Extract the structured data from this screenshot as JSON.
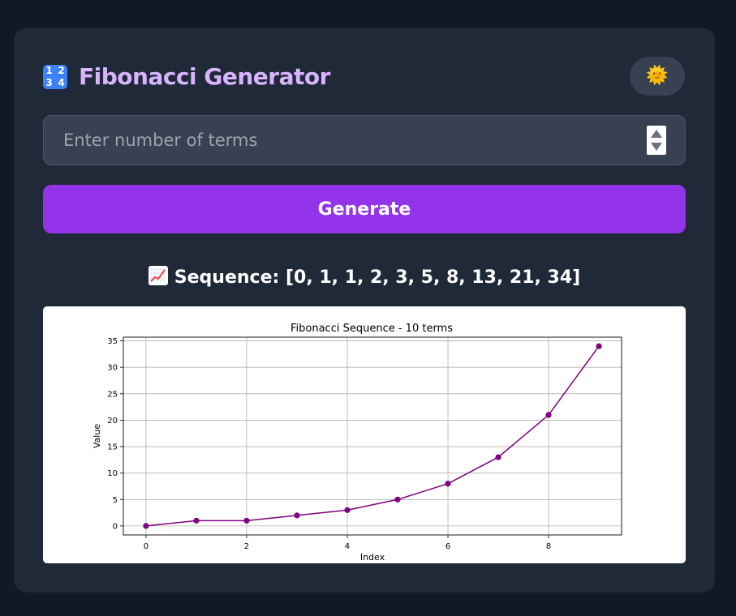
{
  "header": {
    "title_icon_digits": [
      "1",
      "2",
      "3",
      "4"
    ],
    "title": "Fibonacci Generator",
    "theme_toggle_emoji": "🌞"
  },
  "input": {
    "placeholder": "Enter number of terms",
    "value": ""
  },
  "generate_button": {
    "label": "Generate"
  },
  "sequence": {
    "text": "Sequence: [0, 1, 1, 2, 3, 5, 8, 13, 21, 34]"
  },
  "colors": {
    "background": "#111827",
    "card": "#1f2937",
    "title": "#d8b4fe",
    "accent": "#9333ea",
    "line": "#800080"
  },
  "chart_data": {
    "type": "line",
    "title": "Fibonacci Sequence - 10 terms",
    "xlabel": "Index",
    "ylabel": "Value",
    "x": [
      0,
      1,
      2,
      3,
      4,
      5,
      6,
      7,
      8,
      9
    ],
    "y": [
      0,
      1,
      1,
      2,
      3,
      5,
      8,
      13,
      21,
      34
    ],
    "xlim": [
      -0.45,
      9.45
    ],
    "ylim": [
      -1.7,
      35.7
    ],
    "xticks": [
      0,
      2,
      4,
      6,
      8
    ],
    "yticks": [
      0,
      5,
      10,
      15,
      20,
      25,
      30,
      35
    ],
    "grid": true,
    "marker": "circle",
    "color": "#800080"
  }
}
